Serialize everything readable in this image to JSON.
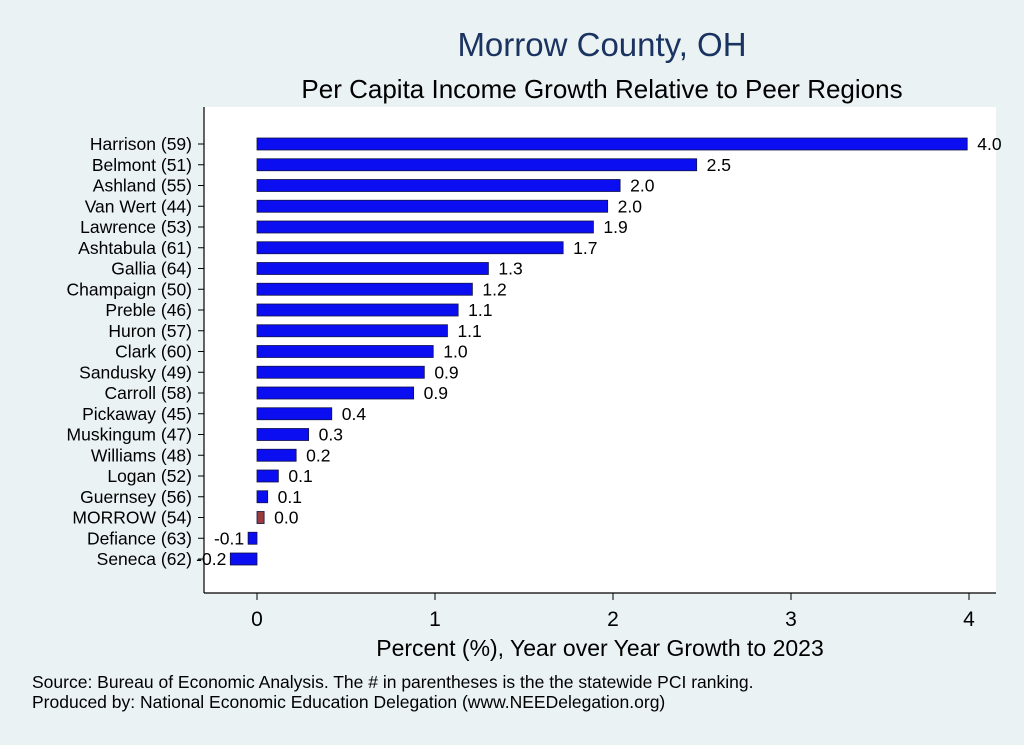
{
  "title": "Morrow County, OH",
  "subtitle": "Per Capita Income Growth Relative to Peer Regions",
  "source_note": "Source: Bureau of Economic Analysis. The # in parentheses is the the statewide PCI ranking.",
  "produced_note": "Produced by: National Economic Education Delegation (www.NEEDelegation.org)",
  "colors": {
    "bar": "#0a0ef0",
    "highlight": "#9b3b3b",
    "plot_bg": "#ffffff",
    "page_bg": "#eaf2f3"
  },
  "chart_data": {
    "type": "bar",
    "orientation": "horizontal",
    "title": "Morrow County, OH",
    "subtitle": "Per Capita Income Growth Relative to Peer Regions",
    "xlabel": "Percent (%), Year over Year Growth to 2023",
    "ylabel": "",
    "xlim": [
      -0.3,
      4.15
    ],
    "xticks": [
      0,
      1,
      2,
      3,
      4
    ],
    "highlight_category": "MORROW (54)",
    "categories": [
      "Harrison (59)",
      "Belmont (51)",
      "Ashland (55)",
      "Van Wert (44)",
      "Lawrence (53)",
      "Ashtabula (61)",
      "Gallia (64)",
      "Champaign (50)",
      "Preble (46)",
      "Huron (57)",
      "Clark (60)",
      "Sandusky (49)",
      "Carroll (58)",
      "Pickaway (45)",
      "Muskingum (47)",
      "Williams (48)",
      "Logan (52)",
      "Guernsey (56)",
      "MORROW (54)",
      "Defiance (63)",
      "Seneca (62)"
    ],
    "values": [
      3.99,
      2.47,
      2.04,
      1.97,
      1.89,
      1.72,
      1.3,
      1.21,
      1.13,
      1.07,
      0.99,
      0.94,
      0.88,
      0.42,
      0.29,
      0.22,
      0.12,
      0.06,
      0.04,
      -0.05,
      -0.15
    ],
    "labels": [
      "4.0",
      "2.5",
      "2.0",
      "2.0",
      "1.9",
      "1.7",
      "1.3",
      "1.2",
      "1.1",
      "1.1",
      "1.0",
      "0.9",
      "0.9",
      "0.4",
      "0.3",
      "0.2",
      "0.1",
      "0.1",
      "0.0",
      "-0.1",
      "-0.2"
    ]
  }
}
